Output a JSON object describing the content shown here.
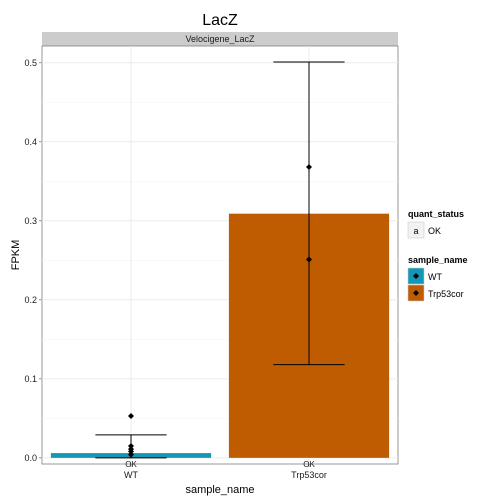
{
  "chart_data": {
    "type": "bar",
    "title": "LacZ",
    "facet_label": "Velocigene_LacZ",
    "xlabel": "sample_name",
    "ylabel": "FPKM",
    "ylim": [
      -0.0078,
      0.5212
    ],
    "yticks": [
      0.0,
      0.1,
      0.2,
      0.3,
      0.4,
      0.5
    ],
    "ytick_labels": [
      "0.0",
      "0.1",
      "0.2",
      "0.3",
      "0.4",
      "0.5"
    ],
    "categories": [
      "WT",
      "Trp53cor"
    ],
    "values": [
      0.006,
      0.309
    ],
    "error_low": [
      0.0,
      0.118
    ],
    "error_high": [
      0.029,
      0.501
    ],
    "bar_colors": [
      "#1497b6",
      "#bf5b00"
    ],
    "quant_status": [
      "OK",
      "OK"
    ],
    "points": [
      {
        "category": "WT",
        "values": [
          0.053,
          0.015,
          0.011,
          0.008,
          0.004
        ]
      },
      {
        "category": "Trp53cor",
        "values": [
          0.368,
          0.251
        ]
      }
    ],
    "grid": true,
    "legend_position": "right",
    "legend": {
      "quant_status_title": "quant_status",
      "quant_status_key_symbol": "a",
      "quant_status_entries": [
        "OK"
      ],
      "sample_name_title": "sample_name",
      "sample_name_entries": [
        "WT",
        "Trp53cor"
      ]
    }
  }
}
